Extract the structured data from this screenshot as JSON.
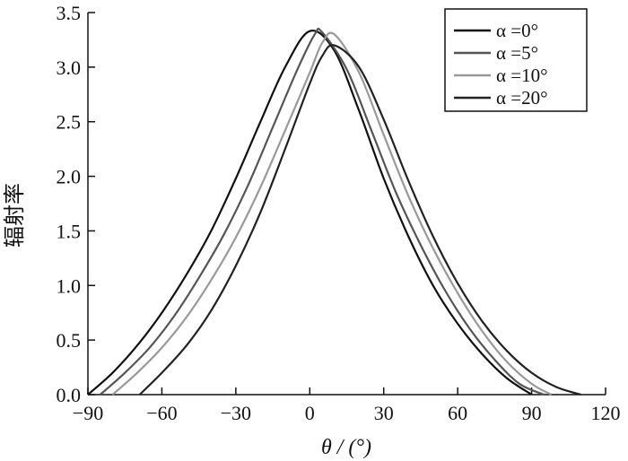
{
  "chart_data": {
    "type": "line",
    "xlabel": "θ / (°)",
    "ylabel": "辐射率",
    "xlim": [
      -90,
      120
    ],
    "ylim": [
      0,
      3.5
    ],
    "xticks": [
      -90,
      -60,
      -30,
      0,
      30,
      60,
      90,
      120
    ],
    "xtick_labels": [
      "−90",
      "−60",
      "−30",
      "0",
      "30",
      "60",
      "90",
      "120"
    ],
    "yticks": [
      0,
      0.5,
      1.0,
      1.5,
      2.0,
      2.5,
      3.0,
      3.5
    ],
    "ytick_labels": [
      "0.0",
      "0.5",
      "1.0",
      "1.5",
      "2.0",
      "2.5",
      "3.0",
      "3.5"
    ],
    "grid": false,
    "legend": "top-right",
    "series": [
      {
        "name": "α =0°",
        "color": "#111111",
        "x": [
          -90,
          -80,
          -70,
          -60,
          -50,
          -40,
          -30,
          -20,
          -10,
          0,
          10,
          20,
          30,
          40,
          50,
          60,
          70,
          80,
          90
        ],
        "y": [
          0.0,
          0.2,
          0.45,
          0.75,
          1.1,
          1.5,
          1.98,
          2.5,
          3.0,
          3.33,
          3.15,
          2.6,
          1.98,
          1.45,
          1.0,
          0.65,
          0.37,
          0.15,
          0.0
        ]
      },
      {
        "name": "α =5°",
        "color": "#555555",
        "x": [
          -85,
          -75,
          -65,
          -55,
          -45,
          -35,
          -25,
          -15,
          -5,
          2,
          5,
          15,
          25,
          35,
          45,
          55,
          65,
          75,
          85,
          95
        ],
        "y": [
          0.0,
          0.2,
          0.43,
          0.72,
          1.07,
          1.46,
          1.92,
          2.45,
          2.98,
          3.3,
          3.32,
          2.98,
          2.42,
          1.85,
          1.37,
          0.95,
          0.6,
          0.32,
          0.1,
          0.0
        ]
      },
      {
        "name": "α =10°",
        "color": "#999999",
        "x": [
          -80,
          -70,
          -60,
          -50,
          -40,
          -30,
          -20,
          -10,
          0,
          5,
          10,
          20,
          30,
          40,
          50,
          60,
          70,
          80,
          90,
          98
        ],
        "y": [
          0.0,
          0.2,
          0.43,
          0.71,
          1.05,
          1.44,
          1.9,
          2.42,
          2.95,
          3.22,
          3.3,
          2.95,
          2.38,
          1.82,
          1.34,
          0.93,
          0.58,
          0.3,
          0.1,
          0.0
        ]
      },
      {
        "name": "α =20°",
        "color": "#222222",
        "x": [
          -69,
          -60,
          -50,
          -40,
          -30,
          -20,
          -10,
          0,
          5,
          10,
          20,
          30,
          40,
          50,
          60,
          70,
          80,
          90,
          100,
          110
        ],
        "y": [
          0.0,
          0.2,
          0.45,
          0.77,
          1.18,
          1.67,
          2.25,
          2.85,
          3.1,
          3.2,
          3.0,
          2.52,
          1.96,
          1.45,
          1.02,
          0.67,
          0.4,
          0.2,
          0.07,
          0.0
        ]
      }
    ]
  }
}
